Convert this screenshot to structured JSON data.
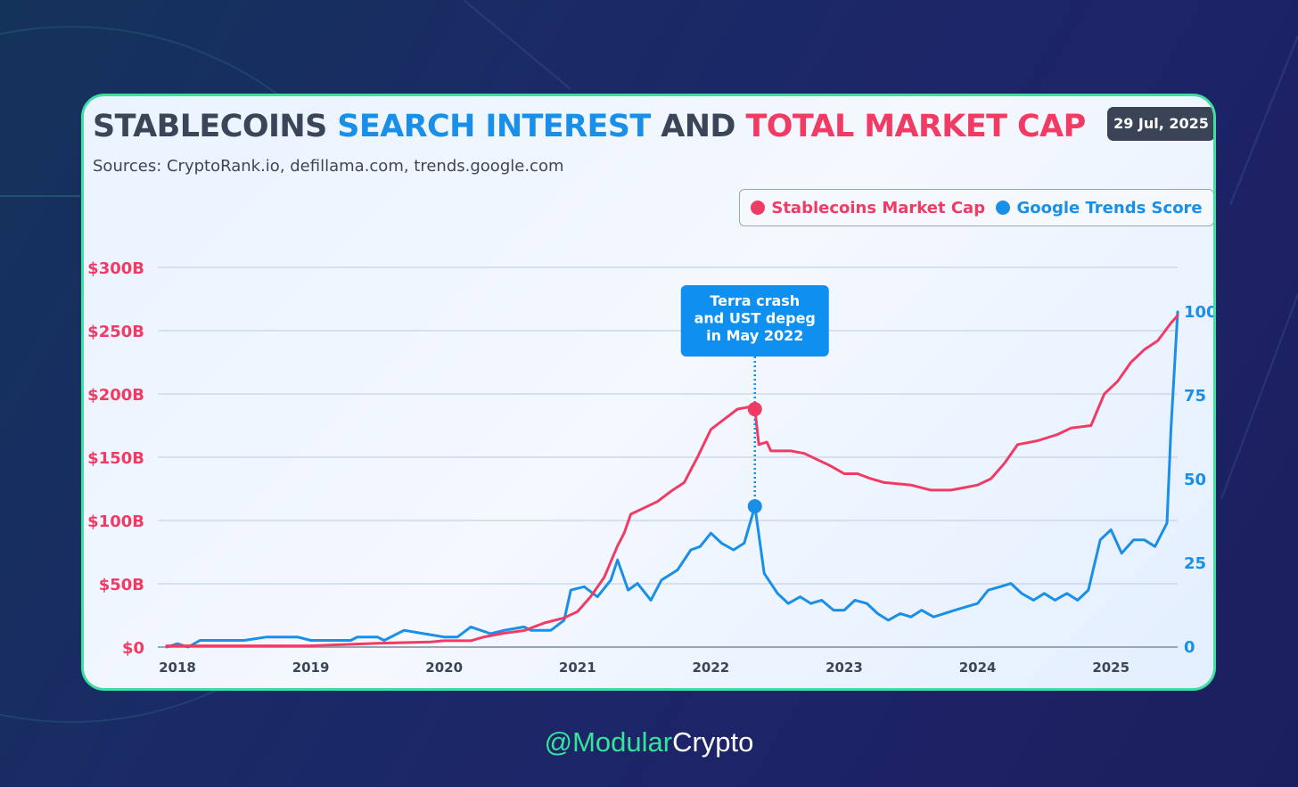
{
  "header": {
    "title_part1": "STABLECOINS",
    "title_part2": "SEARCH INTEREST",
    "title_part3": "AND",
    "title_part4": "TOTAL MARKET CAP",
    "sources": "Sources: CryptoRank.io, defillama.com, trends.google.com",
    "date": "29 Jul, 2025"
  },
  "watermark": {
    "handle_colored": "@Modular",
    "handle_rest": "Crypto"
  },
  "colors": {
    "market_cap": "#f03c64",
    "trends": "#1a8fe8",
    "border": "#3ee0a0",
    "annotation_bg": "#0f8ff0"
  },
  "chart_data": {
    "type": "line",
    "x_ticks": [
      "2018",
      "2019",
      "2020",
      "2021",
      "2022",
      "2023",
      "2024",
      "2025"
    ],
    "y_left": {
      "ticks": [
        "$0",
        "$50B",
        "$100B",
        "$150B",
        "$200B",
        "$250B",
        "$300B"
      ],
      "range": [
        0,
        300
      ],
      "unit": "$B"
    },
    "y_right": {
      "ticks": [
        "0",
        "25",
        "50",
        "75",
        "100"
      ],
      "range": [
        0,
        100
      ]
    },
    "xlim": [
      2017.92,
      2025.5
    ],
    "grid": true,
    "legend_position": "top-right",
    "series": [
      {
        "name": "Stablecoins Market Cap",
        "axis": "left",
        "points": [
          [
            2017.92,
            1
          ],
          [
            2018.5,
            1
          ],
          [
            2019.0,
            1
          ],
          [
            2019.5,
            3
          ],
          [
            2019.9,
            4
          ],
          [
            2020.0,
            5
          ],
          [
            2020.2,
            5
          ],
          [
            2020.3,
            8
          ],
          [
            2020.45,
            11
          ],
          [
            2020.6,
            13
          ],
          [
            2020.75,
            19
          ],
          [
            2020.9,
            23
          ],
          [
            2021.0,
            28
          ],
          [
            2021.1,
            40
          ],
          [
            2021.2,
            55
          ],
          [
            2021.3,
            80
          ],
          [
            2021.35,
            90
          ],
          [
            2021.4,
            105
          ],
          [
            2021.5,
            110
          ],
          [
            2021.6,
            115
          ],
          [
            2021.7,
            123
          ],
          [
            2021.8,
            130
          ],
          [
            2021.85,
            140
          ],
          [
            2021.9,
            150
          ],
          [
            2022.0,
            172
          ],
          [
            2022.1,
            180
          ],
          [
            2022.2,
            188
          ],
          [
            2022.3,
            190
          ],
          [
            2022.33,
            188
          ],
          [
            2022.36,
            160
          ],
          [
            2022.42,
            162
          ],
          [
            2022.45,
            155
          ],
          [
            2022.6,
            155
          ],
          [
            2022.7,
            153
          ],
          [
            2022.8,
            148
          ],
          [
            2022.9,
            143
          ],
          [
            2023.0,
            137
          ],
          [
            2023.1,
            137
          ],
          [
            2023.2,
            133
          ],
          [
            2023.3,
            130
          ],
          [
            2023.5,
            128
          ],
          [
            2023.65,
            124
          ],
          [
            2023.8,
            124
          ],
          [
            2023.9,
            126
          ],
          [
            2024.0,
            128
          ],
          [
            2024.1,
            133
          ],
          [
            2024.2,
            145
          ],
          [
            2024.3,
            160
          ],
          [
            2024.45,
            163
          ],
          [
            2024.6,
            168
          ],
          [
            2024.7,
            173
          ],
          [
            2024.85,
            175
          ],
          [
            2024.95,
            200
          ],
          [
            2025.05,
            210
          ],
          [
            2025.15,
            225
          ],
          [
            2025.25,
            235
          ],
          [
            2025.35,
            242
          ],
          [
            2025.45,
            256
          ],
          [
            2025.5,
            262
          ]
        ]
      },
      {
        "name": "Google Trends Score",
        "axis": "right",
        "points": [
          [
            2017.92,
            0
          ],
          [
            2018.0,
            1
          ],
          [
            2018.08,
            0
          ],
          [
            2018.17,
            2
          ],
          [
            2018.5,
            2
          ],
          [
            2018.67,
            3
          ],
          [
            2018.9,
            3
          ],
          [
            2019.0,
            2
          ],
          [
            2019.3,
            2
          ],
          [
            2019.35,
            3
          ],
          [
            2019.5,
            3
          ],
          [
            2019.55,
            2
          ],
          [
            2019.7,
            5
          ],
          [
            2019.85,
            4
          ],
          [
            2020.0,
            3
          ],
          [
            2020.1,
            3
          ],
          [
            2020.2,
            6
          ],
          [
            2020.35,
            4
          ],
          [
            2020.45,
            5
          ],
          [
            2020.6,
            6
          ],
          [
            2020.65,
            5
          ],
          [
            2020.8,
            5
          ],
          [
            2020.9,
            8
          ],
          [
            2020.95,
            17
          ],
          [
            2021.05,
            18
          ],
          [
            2021.15,
            15
          ],
          [
            2021.25,
            20
          ],
          [
            2021.3,
            26
          ],
          [
            2021.38,
            17
          ],
          [
            2021.45,
            19
          ],
          [
            2021.55,
            14
          ],
          [
            2021.63,
            20
          ],
          [
            2021.75,
            23
          ],
          [
            2021.85,
            29
          ],
          [
            2021.92,
            30
          ],
          [
            2022.0,
            34
          ],
          [
            2022.08,
            31
          ],
          [
            2022.17,
            29
          ],
          [
            2022.25,
            31
          ],
          [
            2022.33,
            42
          ],
          [
            2022.4,
            22
          ],
          [
            2022.5,
            16
          ],
          [
            2022.58,
            13
          ],
          [
            2022.67,
            15
          ],
          [
            2022.75,
            13
          ],
          [
            2022.83,
            14
          ],
          [
            2022.92,
            11
          ],
          [
            2023.0,
            11
          ],
          [
            2023.08,
            14
          ],
          [
            2023.17,
            13
          ],
          [
            2023.25,
            10
          ],
          [
            2023.33,
            8
          ],
          [
            2023.42,
            10
          ],
          [
            2023.5,
            9
          ],
          [
            2023.58,
            11
          ],
          [
            2023.67,
            9
          ],
          [
            2023.83,
            11
          ],
          [
            2024.0,
            13
          ],
          [
            2024.08,
            17
          ],
          [
            2024.17,
            18
          ],
          [
            2024.25,
            19
          ],
          [
            2024.33,
            16
          ],
          [
            2024.42,
            14
          ],
          [
            2024.5,
            16
          ],
          [
            2024.58,
            14
          ],
          [
            2024.67,
            16
          ],
          [
            2024.75,
            14
          ],
          [
            2024.83,
            17
          ],
          [
            2024.92,
            32
          ],
          [
            2025.0,
            35
          ],
          [
            2025.08,
            28
          ],
          [
            2025.17,
            32
          ],
          [
            2025.25,
            32
          ],
          [
            2025.33,
            30
          ],
          [
            2025.42,
            37
          ],
          [
            2025.45,
            65
          ],
          [
            2025.5,
            100
          ]
        ]
      }
    ],
    "annotation": {
      "text_lines": [
        "Terra crash",
        "and UST depeg",
        "in May 2022"
      ],
      "x": 2022.33,
      "market_cap_value": 188,
      "trends_value": 42
    }
  }
}
